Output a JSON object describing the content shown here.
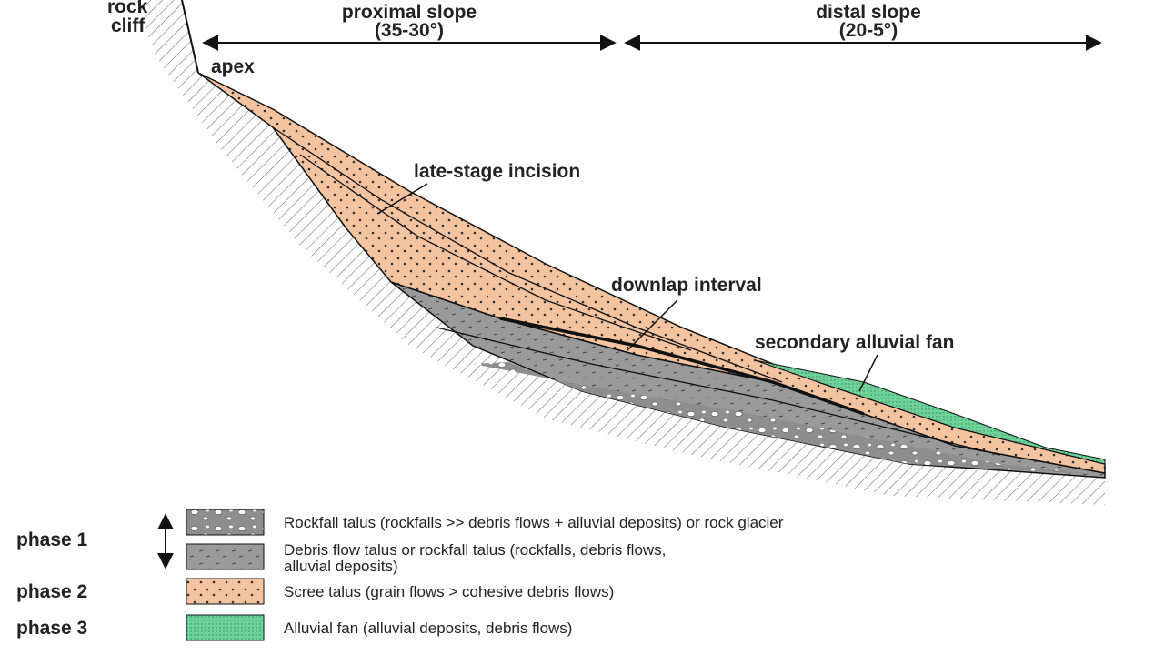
{
  "header": {
    "proximal": {
      "title": "proximal slope",
      "angle": "(35-30°)"
    },
    "distal": {
      "title": "distal slope",
      "angle": "(20-5°)"
    }
  },
  "labels": {
    "rock_cliff": [
      "rock",
      "cliff"
    ],
    "apex": "apex",
    "late_stage_incision": "late-stage incision",
    "downlap_interval": "downlap interval",
    "secondary_alluvial_fan": "secondary alluvial fan"
  },
  "legend": {
    "phases": [
      "phase 1",
      "phase 2",
      "phase 3"
    ],
    "items": [
      {
        "lines": [
          "Rockfall talus (rockfalls >> debris flows + alluvial deposits) or rock glacier"
        ]
      },
      {
        "lines": [
          "Debris flow talus or rockfall talus (rockfalls, debris flows,",
          "alluvial deposits)"
        ]
      },
      {
        "lines": [
          "Scree talus (grain flows > cohesive debris flows)"
        ]
      },
      {
        "lines": [
          "Alluvial fan (alluvial deposits, debris flows)"
        ]
      }
    ]
  }
}
